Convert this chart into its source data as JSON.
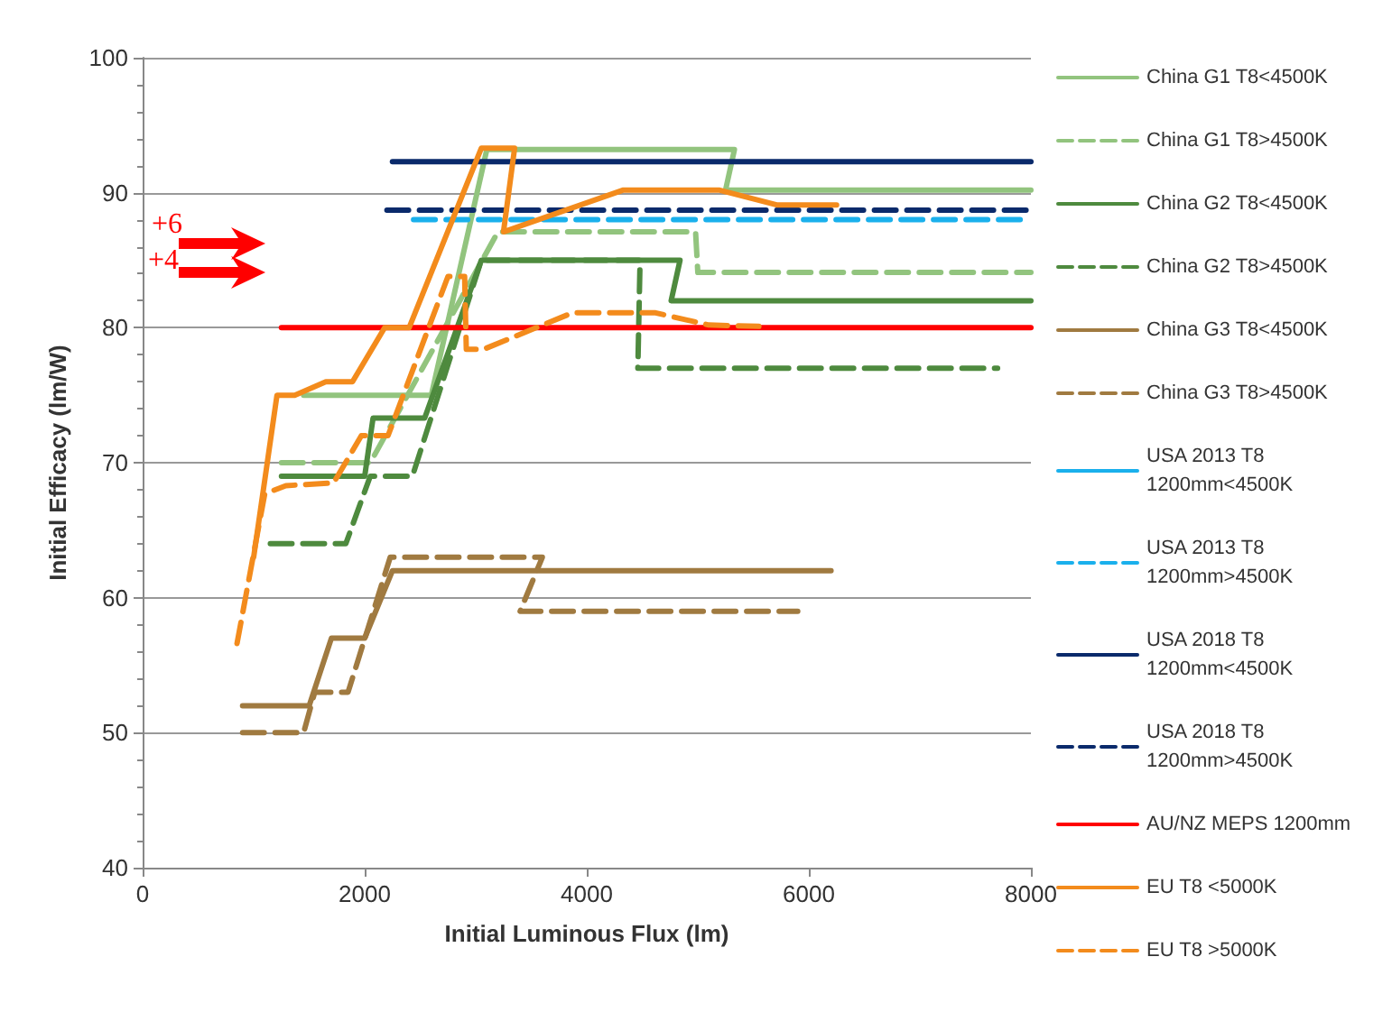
{
  "chart_data": {
    "type": "line",
    "xlabel": "Initial Luminous Flux (lm)",
    "ylabel": "Initial Efficacy (lm/W)",
    "xlim": [
      0,
      8000
    ],
    "xticks": [
      0,
      2000,
      4000,
      6000,
      8000
    ],
    "ylim": [
      40,
      100
    ],
    "yticks": [
      40,
      50,
      60,
      70,
      80,
      90,
      100
    ],
    "grid": "y",
    "legend": "right",
    "marker": "none",
    "annotations": [
      "+6",
      "+4"
    ],
    "series": [
      {
        "name": "China G1 T8<4500K",
        "color": "#92c47e",
        "line_style": "solid",
        "x": [
          1450,
          2600,
          3100,
          5330,
          5250,
          8000
        ],
        "values": [
          75,
          75,
          93.2,
          93.2,
          90.2,
          90.2
        ]
      },
      {
        "name": "China G1 T8>4500K",
        "color": "#92c47e",
        "line_style": "dashed",
        "x": [
          1250,
          2050,
          3200,
          4980,
          5000,
          8000
        ],
        "values": [
          70,
          70,
          87.1,
          87.1,
          84.1,
          84.1
        ]
      },
      {
        "name": "China G2 T8<4500K",
        "color": "#4e8a3e",
        "line_style": "solid",
        "x": [
          1250,
          2000,
          2075,
          2540,
          3050,
          4840,
          4760,
          8000
        ],
        "values": [
          69,
          69,
          73.3,
          73.3,
          85,
          85,
          82,
          82
        ]
      },
      {
        "name": "China G2 T8>4500K",
        "color": "#4e8a3e",
        "line_style": "dashed",
        "x": [
          1150,
          1830,
          2050,
          2430,
          3050,
          4480,
          4460,
          7700
        ],
        "values": [
          64,
          64,
          69,
          69,
          85,
          85,
          77,
          77
        ]
      },
      {
        "name": "China G3 T8<4500K",
        "color": "#a07a40",
        "line_style": "solid",
        "x": [
          900,
          1500,
          1700,
          2000,
          2250,
          6200
        ],
        "values": [
          52,
          52,
          57,
          57,
          62,
          62
        ]
      },
      {
        "name": "China G3 T8>4500K",
        "color": "#a07a40",
        "line_style": "dashed",
        "x": [
          900,
          1450,
          1550,
          1850,
          2230,
          3600,
          3400,
          5900
        ],
        "values": [
          50,
          50,
          53,
          53,
          63,
          63,
          59,
          59
        ]
      },
      {
        "name": "USA 2013 T8 1200mm<4500K",
        "color": "#1ab0ec",
        "line_style": "solid"
      },
      {
        "name": "USA 2013 T8 1200mm>4500K",
        "color": "#1ab0ec",
        "line_style": "dashed",
        "x": [
          2440,
          8000
        ],
        "values": [
          88,
          88
        ]
      },
      {
        "name": "USA 2018 T8 1200mm<4500K",
        "color": "#0a2a6b",
        "line_style": "solid",
        "x": [
          2250,
          8000
        ],
        "values": [
          92.3,
          92.3
        ]
      },
      {
        "name": "USA 2018 T8 1200mm>4500K",
        "color": "#0a2a6b",
        "line_style": "dashed",
        "x": [
          2200,
          8000
        ],
        "values": [
          88.7,
          88.7
        ]
      },
      {
        "name": "AU/NZ MEPS 1200mm",
        "color": "#ff0000",
        "line_style": "solid",
        "x": [
          1250,
          8000
        ],
        "values": [
          80,
          80
        ]
      },
      {
        "name": "EU T8 <5000K",
        "color": "#f38b1c",
        "line_style": "solid",
        "x": [
          1000,
          1210,
          1370,
          1650,
          1890,
          2180,
          2400,
          3050,
          3350,
          3250,
          4330,
          5190,
          5710,
          6250
        ],
        "values": [
          63,
          75,
          75,
          76,
          76,
          80,
          80,
          93.3,
          93.3,
          87.1,
          90.2,
          90.2,
          89.1,
          89.1
        ]
      },
      {
        "name": "EU T8 >5000K",
        "color": "#f38b1c",
        "line_style": "dashed",
        "x": [
          850,
          1100,
          1290,
          1720,
          1970,
          2210,
          2750,
          2900,
          2915,
          3070,
          3870,
          4620,
          5100,
          5550
        ],
        "values": [
          56.6,
          67.7,
          68.3,
          68.5,
          72,
          72,
          83.8,
          83.8,
          78.4,
          78.4,
          81.1,
          81.1,
          80.2,
          80.1
        ]
      }
    ]
  }
}
